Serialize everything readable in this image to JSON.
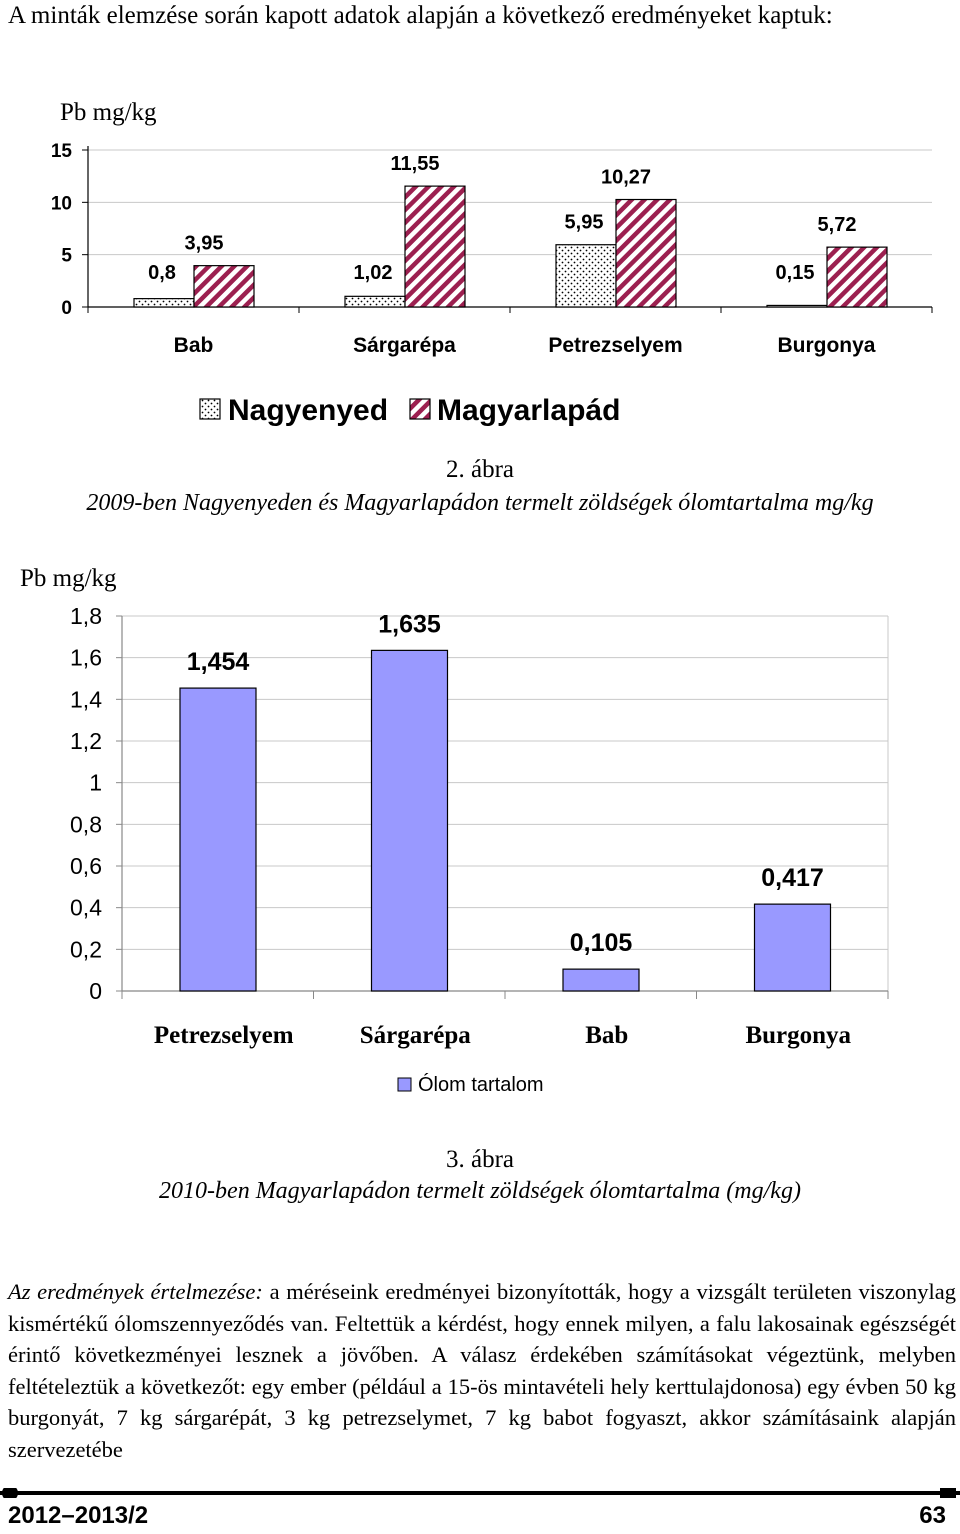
{
  "intro_text": "A minták elemzése során kapott adatok alapján a következő eredményeket kaptuk:",
  "chart_data": [
    {
      "type": "bar",
      "ylabel": "Pb mg/kg",
      "ylim": [
        0,
        15
      ],
      "yticks": [
        "0",
        "5",
        "10",
        "15"
      ],
      "categories": [
        "Bab",
        "Sárgarépa",
        "Petrezselyem",
        "Burgonya"
      ],
      "series": [
        {
          "name": "Nagyenyed",
          "values": [
            0.8,
            1.02,
            5.95,
            0.15
          ],
          "labels": [
            "0,8",
            "1,02",
            "5,95",
            "0,15"
          ],
          "pattern": "dotted"
        },
        {
          "name": "Magyarlapád",
          "values": [
            3.95,
            11.55,
            10.27,
            5.72
          ],
          "labels": [
            "3,95",
            "11,55",
            "10,27",
            "5,72"
          ],
          "pattern": "diagonal-stripes",
          "color": "#9c2050"
        }
      ],
      "grid": true,
      "legend_position": "bottom"
    },
    {
      "type": "bar",
      "ylabel": "Pb mg/kg",
      "ylim": [
        0,
        1.8
      ],
      "yticks": [
        "0",
        "0,2",
        "0,4",
        "0,6",
        "0,8",
        "1",
        "1,2",
        "1,4",
        "1,6",
        "1,8"
      ],
      "categories": [
        "Petrezselyem",
        "Sárgarépa",
        "Bab",
        "Burgonya"
      ],
      "series": [
        {
          "name": "Ólom tartalom",
          "values": [
            1.454,
            1.635,
            0.105,
            0.417
          ],
          "labels": [
            "1,454",
            "1,635",
            "0,105",
            "0,417"
          ],
          "color": "#9999ff"
        }
      ],
      "grid": true,
      "legend_position": "bottom"
    }
  ],
  "captions": {
    "fig2_number": "2. ábra",
    "fig2_text": "2009-ben Nagyenyeden és Magyarlapádon termelt zöldségek ólomtartalma mg/kg",
    "fig3_number": "3. ábra",
    "fig3_text": "2010-ben Magyarlapádon termelt zöldségek ólomtartalma (mg/kg)"
  },
  "body": {
    "lead": "Az eredmények értelmezése:",
    "text": " a méréseink eredményei bizonyították, hogy a vizsgált területen viszonylag kismértékű ólomszennyeződés van. Feltettük a kérdést, hogy ennek milyen, a falu lakosainak egészségét érintő következményei lesznek a jövőben. A válasz érdekében számításokat végeztünk, melyben feltételeztük a következőt: egy ember (például a 15-ös mintavételi hely kerttulajdonosa) egy évben 50 kg burgonyát, 7 kg sárgarépát, 3 kg petrezselymet, 7 kg babot fogyaszt, akkor számításaink alapján szervezetébe"
  },
  "footer": {
    "issue": "2012–2013/2",
    "page": "63"
  }
}
